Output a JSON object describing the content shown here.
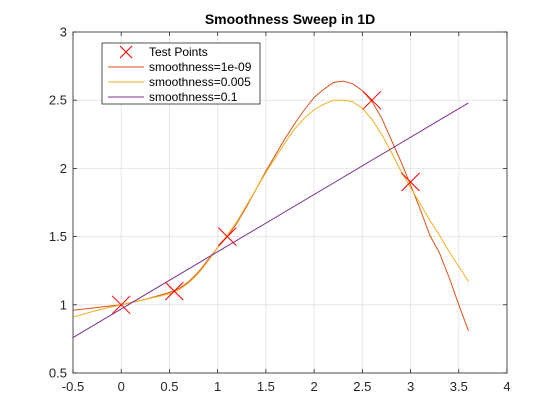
{
  "chart_data": {
    "type": "line",
    "title": "Smoothness Sweep in 1D",
    "xlabel": "",
    "ylabel": "",
    "xlim": [
      -0.5,
      4
    ],
    "ylim": [
      0.5,
      3
    ],
    "xticks": [
      "-0.5",
      "0",
      "0.5",
      "1",
      "1.5",
      "2",
      "2.5",
      "3",
      "3.5",
      "4"
    ],
    "yticks": [
      "0.5",
      "1",
      "1.5",
      "2",
      "2.5",
      "3"
    ],
    "grid": true,
    "legend_position": "top-left",
    "test_points": {
      "name": "Test Points",
      "color": "#ff0000",
      "marker": "x",
      "x": [
        0,
        0.55,
        1.1,
        2.6,
        3.0
      ],
      "y": [
        1.0,
        1.1,
        1.5,
        2.5,
        1.9
      ]
    },
    "series": [
      {
        "name": "smoothness=1e-09",
        "color": "#d95319",
        "x": [
          -0.5,
          -0.25,
          0,
          0.25,
          0.5,
          0.6,
          0.7,
          0.8,
          0.9,
          1.0,
          1.1,
          1.2,
          1.3,
          1.4,
          1.5,
          1.6,
          1.7,
          1.8,
          1.9,
          2.0,
          2.1,
          2.2,
          2.3,
          2.4,
          2.5,
          2.6,
          2.7,
          2.8,
          2.9,
          3.0,
          3.1,
          3.2,
          3.3,
          3.4,
          3.5,
          3.6
        ],
        "y": [
          0.96,
          0.98,
          1.0,
          1.04,
          1.09,
          1.12,
          1.17,
          1.24,
          1.33,
          1.42,
          1.5,
          1.6,
          1.72,
          1.85,
          1.98,
          2.1,
          2.22,
          2.33,
          2.43,
          2.52,
          2.58,
          2.63,
          2.64,
          2.62,
          2.57,
          2.49,
          2.37,
          2.21,
          2.05,
          1.88,
          1.7,
          1.51,
          1.38,
          1.2,
          1.0,
          0.81
        ]
      },
      {
        "name": "smoothness=0.005",
        "color": "#edb120",
        "x": [
          -0.5,
          -0.25,
          0,
          0.25,
          0.5,
          0.6,
          0.7,
          0.8,
          0.9,
          1.0,
          1.1,
          1.2,
          1.3,
          1.4,
          1.5,
          1.6,
          1.7,
          1.8,
          1.9,
          2.0,
          2.1,
          2.2,
          2.3,
          2.4,
          2.5,
          2.6,
          2.7,
          2.8,
          2.9,
          3.0,
          3.1,
          3.2,
          3.3,
          3.4,
          3.5,
          3.6
        ],
        "y": [
          0.91,
          0.96,
          1.0,
          1.04,
          1.08,
          1.11,
          1.16,
          1.23,
          1.32,
          1.42,
          1.51,
          1.61,
          1.73,
          1.85,
          1.97,
          2.08,
          2.19,
          2.29,
          2.37,
          2.43,
          2.47,
          2.5,
          2.5,
          2.49,
          2.44,
          2.36,
          2.25,
          2.12,
          1.98,
          1.86,
          1.74,
          1.62,
          1.51,
          1.39,
          1.28,
          1.17
        ]
      },
      {
        "name": "smoothness=0.1",
        "color": "#7e2f8e",
        "x": [
          -0.5,
          3.6
        ],
        "y": [
          0.76,
          2.48
        ]
      }
    ]
  }
}
